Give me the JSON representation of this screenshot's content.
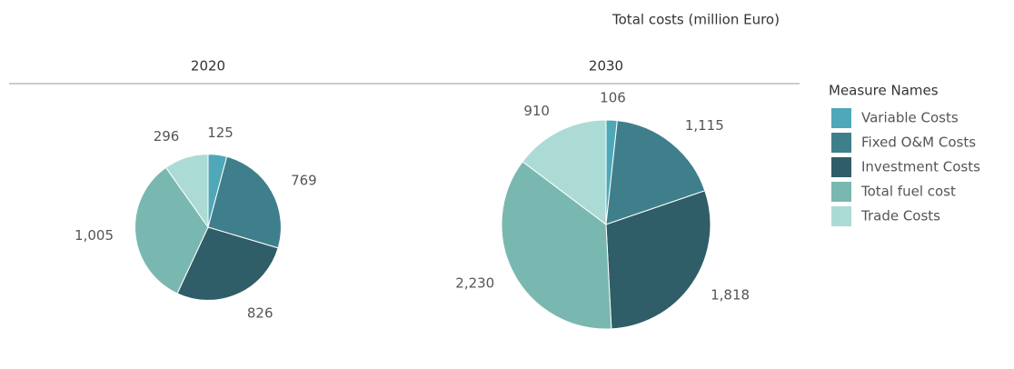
{
  "title": "Total costs (million Euro)",
  "legend_title": "Measure Names",
  "chart_data": [
    {
      "type": "pie",
      "title": "2020",
      "categories": [
        "Variable Costs",
        "Fixed O&M Costs",
        "Investment Costs",
        "Total fuel cost",
        "Trade Costs"
      ],
      "values": [
        125,
        769,
        826,
        1005,
        296
      ],
      "value_labels": [
        "125",
        "769",
        "826",
        "1,005",
        "296"
      ],
      "colors": [
        "#4fa8b8",
        "#3f7f8c",
        "#2f5d68",
        "#79b8b0",
        "#acdbd5"
      ]
    },
    {
      "type": "pie",
      "title": "2030",
      "categories": [
        "Variable Costs",
        "Fixed O&M Costs",
        "Investment Costs",
        "Total fuel cost",
        "Trade Costs"
      ],
      "values": [
        106,
        1115,
        1818,
        2230,
        910
      ],
      "value_labels": [
        "106",
        "1,115",
        "1,818",
        "2,230",
        "910"
      ],
      "colors": [
        "#4fa8b8",
        "#3f7f8c",
        "#2f5d68",
        "#79b8b0",
        "#acdbd5"
      ]
    }
  ]
}
